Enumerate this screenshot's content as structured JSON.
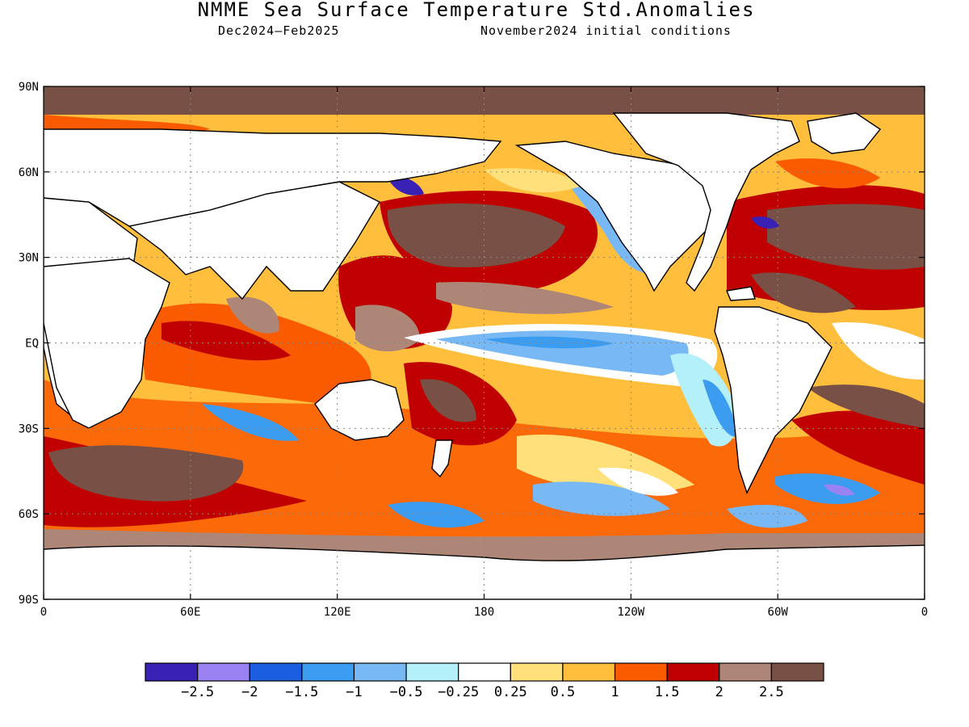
{
  "header": {
    "title": "NMME Sea Surface Temperature Std.Anomalies",
    "period": "Dec2024–Feb2025",
    "initial_conditions": "November2024 initial conditions"
  },
  "map": {
    "projection": "equirectangular",
    "lon_range": [
      0,
      360
    ],
    "lat_range": [
      -90,
      90
    ],
    "gridlines": "dotted",
    "lat_ticks": [
      "90N",
      "60N",
      "30N",
      "EQ",
      "30S",
      "60S",
      "90S"
    ],
    "lon_ticks": [
      "0",
      "60E",
      "120E",
      "180",
      "120W",
      "60W",
      "0"
    ],
    "land_color": "#ffffff",
    "features": [
      {
        "name": "equatorial-pacific-cold-tongue",
        "category": -0.5
      },
      {
        "name": "north-pacific-warm-pool",
        "category": 2.5
      },
      {
        "name": "west-pacific-warm",
        "category": 2.5
      },
      {
        "name": "indian-ocean-warm",
        "category": 1.5
      },
      {
        "name": "south-pacific-warm",
        "category": 1.0
      },
      {
        "name": "north-atlantic-warm",
        "category": 2.5
      },
      {
        "name": "south-atlantic-cold-patch",
        "category": -1.0
      },
      {
        "name": "arctic-ocean-max",
        "category": 2.5
      }
    ]
  },
  "colorbar": {
    "colors": [
      "#3a21b6",
      "#9b82f3",
      "#1c5ee0",
      "#3c9cf0",
      "#78b8f5",
      "#b4f0fa",
      "#ffffff",
      "#ffe07a",
      "#ffbe3c",
      "#fa5a00",
      "#c00000",
      "#ae8678",
      "#785046"
    ],
    "labels": [
      "−2.5",
      "−2",
      "−1.5",
      "−1",
      "−0.5",
      "−0.25",
      "0.25",
      "0.5",
      "1",
      "1.5",
      "2",
      "2.5"
    ]
  }
}
